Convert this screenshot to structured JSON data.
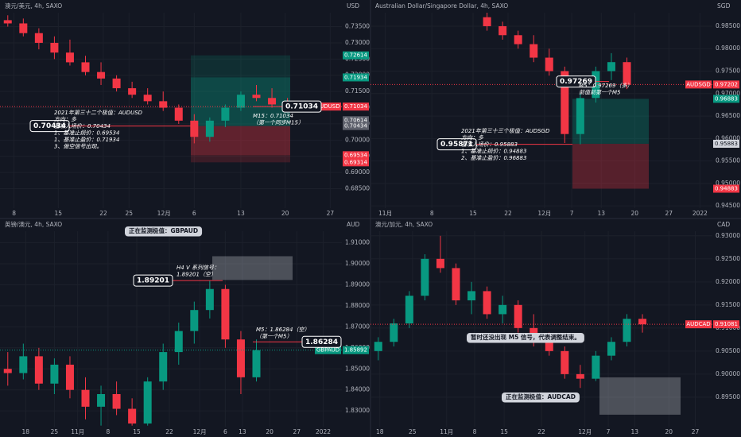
{
  "chart_data": [
    {
      "type": "candlestick",
      "title": "澳元/美元, 4h, SAXO",
      "unit": "USD",
      "x": [
        0.5,
        1.5,
        2.5,
        3.5,
        4.5,
        5.5,
        6.5,
        7.5,
        8.5,
        9.5,
        10.5,
        11.5,
        12.5,
        13.5,
        14.5,
        15.5,
        16.5,
        17.5,
        18.5
      ],
      "open": [
        0.737,
        0.736,
        0.733,
        0.73,
        0.727,
        0.724,
        0.721,
        0.719,
        0.716,
        0.714,
        0.712,
        0.71,
        0.706,
        0.701,
        0.706,
        0.71,
        0.714,
        0.713,
        0.711
      ],
      "high": [
        0.7385,
        0.7375,
        0.7345,
        0.732,
        0.731,
        0.726,
        0.724,
        0.72,
        0.718,
        0.716,
        0.715,
        0.711,
        0.708,
        0.707,
        0.711,
        0.715,
        0.717,
        0.716,
        0.713
      ],
      "low": [
        0.735,
        0.732,
        0.728,
        0.725,
        0.723,
        0.72,
        0.717,
        0.715,
        0.713,
        0.711,
        0.709,
        0.705,
        0.699,
        0.6995,
        0.704,
        0.709,
        0.712,
        0.71,
        0.709
      ],
      "close": [
        0.736,
        0.733,
        0.73,
        0.727,
        0.724,
        0.721,
        0.719,
        0.716,
        0.714,
        0.712,
        0.71,
        0.706,
        0.701,
        0.706,
        0.71,
        0.714,
        0.713,
        0.711,
        0.7103
      ],
      "xlim": [
        0,
        22
      ],
      "xticks": [
        {
          "value": 0.9,
          "label": "8"
        },
        {
          "value": 3.75,
          "label": "15"
        },
        {
          "value": 6.65,
          "label": "22"
        },
        {
          "value": 8.3,
          "label": "25"
        },
        {
          "value": 10.55,
          "label": "12月"
        },
        {
          "value": 12.5,
          "label": "6"
        },
        {
          "value": 15.5,
          "label": "13"
        },
        {
          "value": 18.35,
          "label": "20"
        },
        {
          "value": 21.25,
          "label": "27"
        }
      ],
      "ylim": [
        0.679,
        0.7393
      ],
      "yticks": [
        {
          "value": 0.685,
          "label": "0.68500"
        },
        {
          "value": 0.69,
          "label": "0.69000"
        },
        {
          "value": 0.695,
          "label": "0.69500"
        },
        {
          "value": 0.7,
          "label": "0.70000"
        },
        {
          "value": 0.705,
          "label": "0.70500"
        },
        {
          "value": 0.71,
          "label": "0.71000"
        },
        {
          "value": 0.715,
          "label": "0.71500"
        },
        {
          "value": 0.72,
          "label": "0.72000"
        },
        {
          "value": 0.725,
          "label": "0.72500"
        },
        {
          "value": 0.73,
          "label": "0.73000"
        },
        {
          "value": 0.735,
          "label": "0.73500"
        }
      ],
      "zones": [
        {
          "from": 0.70434,
          "to": 0.71934,
          "color": "rgba(8,153,129,0.38)"
        },
        {
          "from": 0.71934,
          "to": 0.72614,
          "color": "rgba(8,153,129,0.18)"
        },
        {
          "from": 0.69534,
          "to": 0.70434,
          "color": "rgba(242,54,69,0.35)"
        },
        {
          "from": 0.69314,
          "to": 0.69534,
          "color": "rgba(242,54,69,0.18)"
        }
      ],
      "tags": [
        {
          "value": 0.72614,
          "color": "#089981"
        },
        {
          "value": 0.71934,
          "color": "#089981"
        },
        {
          "name": "AUDUSD",
          "value": 0.71034,
          "color": "#f23645"
        },
        {
          "value": 0.70614,
          "color": "#5d606b"
        },
        {
          "value": 0.70434,
          "color": "#5d606b"
        },
        {
          "value": 0.69534,
          "color": "#f23645"
        },
        {
          "value": 0.69314,
          "color": "#f23645"
        }
      ],
      "callouts": [
        {
          "value": 0.70434
        },
        {
          "value": 0.71034
        }
      ],
      "notes": [
        {
          "lines": [
            "2021年第三十二个极值：AUDUSD",
            "方向：多",
            "基准入场价：0.70434",
            "1、基准止损价：0.69534",
            "1、基准止盈价：0.71934",
            "3、做空信号出现。"
          ]
        },
        {
          "lines": [
            "M15：0.71034",
            "（第一个同步M15）"
          ]
        }
      ]
    },
    {
      "type": "candlestick",
      "title": "Australian Dollar/Singapore Dollar, 4h, SAXO",
      "unit": "SGD",
      "x": [
        7.5,
        8.5,
        9.5,
        10.5,
        11.5,
        12.5,
        13.5,
        14.5,
        15.5,
        16.5
      ],
      "open": [
        0.987,
        0.985,
        0.983,
        0.981,
        0.978,
        0.975,
        0.961,
        0.969,
        0.975,
        0.977
      ],
      "high": [
        0.988,
        0.986,
        0.984,
        0.983,
        0.98,
        0.976,
        0.97,
        0.976,
        0.979,
        0.978
      ],
      "low": [
        0.984,
        0.982,
        0.98,
        0.977,
        0.974,
        0.959,
        0.9587,
        0.968,
        0.973,
        0.971
      ],
      "close": [
        0.985,
        0.983,
        0.981,
        0.978,
        0.975,
        0.961,
        0.969,
        0.975,
        0.977,
        0.972
      ],
      "xlim": [
        0,
        22
      ],
      "xticks": [
        {
          "value": 0.95,
          "label": "11月"
        },
        {
          "value": 3.95,
          "label": "8"
        },
        {
          "value": 6.6,
          "label": "15"
        },
        {
          "value": 8.85,
          "label": "22"
        },
        {
          "value": 11.2,
          "label": "12月"
        },
        {
          "value": 12.95,
          "label": "7"
        },
        {
          "value": 14.85,
          "label": "13"
        },
        {
          "value": 17,
          "label": "20"
        },
        {
          "value": 19.2,
          "label": "27"
        },
        {
          "value": 21.2,
          "label": "2022"
        }
      ],
      "ylim": [
        0.9445,
        0.988
      ],
      "yticks": [
        {
          "value": 0.945,
          "label": "0.94500"
        },
        {
          "value": 0.95,
          "label": "0.95000"
        },
        {
          "value": 0.955,
          "label": "0.95500"
        },
        {
          "value": 0.96,
          "label": "0.96000"
        },
        {
          "value": 0.965,
          "label": "0.96500"
        },
        {
          "value": 0.97,
          "label": "0.97000"
        },
        {
          "value": 0.975,
          "label": "0.97500"
        },
        {
          "value": 0.98,
          "label": "0.98000"
        },
        {
          "value": 0.985,
          "label": "0.98500"
        }
      ],
      "zones": [
        {
          "from": 0.95883,
          "to": 0.96883,
          "color": "rgba(8,153,129,0.3)"
        },
        {
          "from": 0.94883,
          "to": 0.95883,
          "color": "rgba(242,54,69,0.3)"
        }
      ],
      "tags": [
        {
          "name": "AUDSGD",
          "value": 0.97202,
          "color": "#f23645"
        },
        {
          "value": 0.96883,
          "color": "#089981"
        },
        {
          "value": 0.95883,
          "color": "#d1d4dc"
        },
        {
          "value": 0.94883,
          "color": "#f23645"
        }
      ],
      "callouts": [
        {
          "value": 0.97269
        },
        {
          "value": 0.95871
        }
      ],
      "notes": [
        {
          "lines": [
            "M5：0.97269（多）",
            "前值前第一个M5"
          ]
        },
        {
          "lines": [
            "2021年第三十三个极值：AUDSGD",
            "方向：多",
            "基准入场价：0.95883",
            "1、基准止损价：0.94883",
            "2、基准止盈价：0.96883"
          ]
        }
      ]
    },
    {
      "type": "candlestick",
      "title": "英镑/澳元, 4h, SAXO",
      "unit": "AUD",
      "x": [
        0.5,
        1.5,
        2.5,
        3.5,
        4.5,
        5.5,
        6.5,
        7.5,
        8.5,
        9.5,
        10.5,
        11.5,
        12.5,
        13.5,
        14.5,
        15.5,
        16.5
      ],
      "open": [
        1.85,
        1.848,
        1.856,
        1.843,
        1.852,
        1.84,
        1.832,
        1.838,
        1.831,
        1.824,
        1.844,
        1.858,
        1.868,
        1.878,
        1.888,
        1.864,
        1.846
      ],
      "high": [
        1.858,
        1.862,
        1.86,
        1.855,
        1.856,
        1.846,
        1.842,
        1.844,
        1.836,
        1.846,
        1.862,
        1.872,
        1.882,
        1.892,
        1.89,
        1.868,
        1.864
      ],
      "low": [
        1.842,
        1.845,
        1.84,
        1.838,
        1.836,
        1.826,
        1.823,
        1.828,
        1.823,
        1.823,
        1.84,
        1.852,
        1.862,
        1.874,
        1.86,
        1.838,
        1.844
      ],
      "close": [
        1.848,
        1.856,
        1.843,
        1.852,
        1.84,
        1.832,
        1.838,
        1.831,
        1.824,
        1.844,
        1.858,
        1.868,
        1.878,
        1.888,
        1.864,
        1.846,
        1.8589
      ],
      "xlim": [
        0,
        22
      ],
      "xticks": [
        {
          "value": 1.65,
          "label": "18"
        },
        {
          "value": 3.5,
          "label": "25"
        },
        {
          "value": 5,
          "label": "11月"
        },
        {
          "value": 6.95,
          "label": "8"
        },
        {
          "value": 8.8,
          "label": "15"
        },
        {
          "value": 10.9,
          "label": "22"
        },
        {
          "value": 12.85,
          "label": "12月"
        },
        {
          "value": 14.5,
          "label": "6"
        },
        {
          "value": 15.6,
          "label": "13"
        },
        {
          "value": 17.35,
          "label": "20"
        },
        {
          "value": 19.1,
          "label": "27"
        },
        {
          "value": 20.8,
          "label": "2022"
        }
      ],
      "ylim": [
        1.8225,
        1.9155
      ],
      "yticks": [
        {
          "value": 1.83,
          "label": "1.83000"
        },
        {
          "value": 1.84,
          "label": "1.84000"
        },
        {
          "value": 1.85,
          "label": "1.85000"
        },
        {
          "value": 1.86,
          "label": "1.86000"
        },
        {
          "value": 1.87,
          "label": "1.87000"
        },
        {
          "value": 1.88,
          "label": "1.88000"
        },
        {
          "value": 1.89,
          "label": "1.89000"
        },
        {
          "value": 1.9,
          "label": "1.90000"
        },
        {
          "value": 1.91,
          "label": "1.91000"
        }
      ],
      "zones": [
        {
          "from": 1.8923,
          "to": 1.9036,
          "color": "rgba(209,212,220,0.3)"
        }
      ],
      "tags": [
        {
          "name": "GBPAUD",
          "value": 1.85892,
          "color": "#089981"
        }
      ],
      "callouts": [
        {
          "value": 1.89201
        },
        {
          "value": 1.86284
        }
      ],
      "notes": [
        {
          "lines": [
            "正在监测极值：GBPAUD"
          ],
          "box": true
        },
        {
          "lines": [
            "H4 V 系列信号：",
            "1.89201（空）"
          ]
        },
        {
          "lines": [
            "M5：1.86284（空）",
            "（第一个M5）"
          ]
        }
      ]
    },
    {
      "type": "candlestick",
      "title": "澳元/加元, 4h, SAXO",
      "unit": "CAD",
      "x": [
        0.5,
        1.5,
        2.5,
        3.5,
        4.5,
        5.5,
        6.5,
        7.5,
        8.5,
        9.5,
        10.5,
        11.5,
        12.5,
        13.5,
        14.5,
        15.5,
        16.5,
        17.5
      ],
      "open": [
        0.905,
        0.907,
        0.911,
        0.917,
        0.925,
        0.923,
        0.916,
        0.918,
        0.913,
        0.915,
        0.91,
        0.908,
        0.905,
        0.9,
        0.899,
        0.904,
        0.907,
        0.912
      ],
      "high": [
        0.908,
        0.912,
        0.918,
        0.926,
        0.93,
        0.924,
        0.92,
        0.919,
        0.917,
        0.916,
        0.913,
        0.909,
        0.906,
        0.902,
        0.905,
        0.908,
        0.913,
        0.913
      ],
      "low": [
        0.903,
        0.906,
        0.91,
        0.916,
        0.922,
        0.915,
        0.913,
        0.912,
        0.911,
        0.909,
        0.906,
        0.904,
        0.899,
        0.897,
        0.8985,
        0.903,
        0.906,
        0.909
      ],
      "close": [
        0.907,
        0.911,
        0.917,
        0.925,
        0.923,
        0.916,
        0.918,
        0.913,
        0.915,
        0.91,
        0.908,
        0.905,
        0.9,
        0.899,
        0.904,
        0.907,
        0.912,
        0.9108
      ],
      "xlim": [
        0,
        22
      ],
      "xticks": [
        {
          "value": 0.6,
          "label": "18"
        },
        {
          "value": 2.7,
          "label": "25"
        },
        {
          "value": 4.9,
          "label": "11月"
        },
        {
          "value": 6.7,
          "label": "8"
        },
        {
          "value": 8.6,
          "label": "15"
        },
        {
          "value": 11,
          "label": "22"
        },
        {
          "value": 13.8,
          "label": "12月"
        },
        {
          "value": 15.3,
          "label": "7"
        },
        {
          "value": 17,
          "label": "13"
        },
        {
          "value": 19.2,
          "label": "20"
        },
        {
          "value": 20.9,
          "label": "27"
        }
      ],
      "ylim": [
        0.8886,
        0.931
      ],
      "yticks": [
        {
          "value": 0.895,
          "label": "0.89500"
        },
        {
          "value": 0.9,
          "label": "0.90000"
        },
        {
          "value": 0.905,
          "label": "0.90500"
        },
        {
          "value": 0.91,
          "label": "0.91000"
        },
        {
          "value": 0.915,
          "label": "0.91500"
        },
        {
          "value": 0.92,
          "label": "0.92000"
        },
        {
          "value": 0.925,
          "label": "0.92500"
        },
        {
          "value": 0.93,
          "label": "0.93000"
        }
      ],
      "zones": [
        {
          "from": 0.8912,
          "to": 0.8993,
          "color": "rgba(209,212,220,0.3)"
        }
      ],
      "tags": [
        {
          "name": "AUDCAD",
          "value": 0.91081,
          "color": "#f23645"
        }
      ],
      "callouts": [],
      "notes": [
        {
          "lines": [
            "暂时还没出现 M5 信号，代表调整结束。"
          ],
          "box": true
        },
        {
          "lines": [
            "正在监测极值：AUDCAD"
          ],
          "box": true
        }
      ]
    }
  ]
}
